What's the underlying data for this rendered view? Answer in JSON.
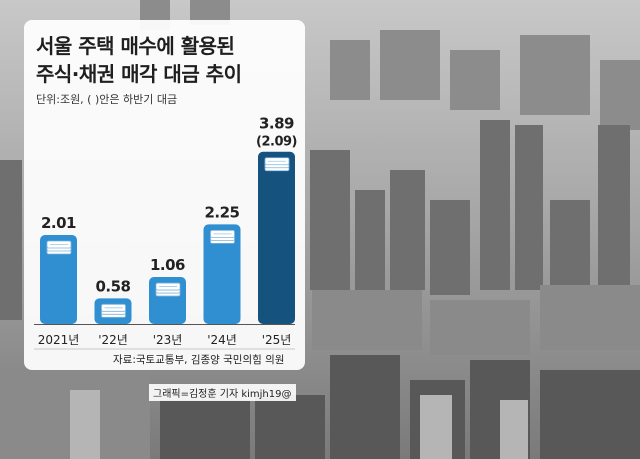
{
  "title_lines": [
    "서울 주택 매수에 활용된",
    "주식·채권 매각 대금 추이"
  ],
  "unit_note": "단위:조원, ( )안은 하반기 대금",
  "source": "자료:국토교통부, 김종양 국민의힘 의원",
  "credit": "그래픽=김정훈 기자 kimjh19@",
  "colors": {
    "bar": "#2f8fd0",
    "bar_highlight": "#16527e",
    "accent": "#2f8fd0"
  },
  "chart_data": {
    "type": "bar",
    "title": "서울 주택 매수에 활용된 주식·채권 매각 대금 추이",
    "categories": [
      "2021년",
      "'22년",
      "'23년",
      "'24년",
      "'25년"
    ],
    "values": [
      2.01,
      0.58,
      1.06,
      2.25,
      3.89
    ],
    "value_labels": [
      "2.01",
      "0.58",
      "1.06",
      "2.25",
      "3.89"
    ],
    "sub_labels": [
      "",
      "",
      "",
      "",
      "(2.09)"
    ],
    "second_half_values": [
      null,
      null,
      null,
      null,
      2.09
    ],
    "unit": "조원",
    "ylim": [
      0,
      4.2
    ],
    "highlight_index": 4,
    "grid": false,
    "legend": "none",
    "icon": "money-stack-icon"
  }
}
